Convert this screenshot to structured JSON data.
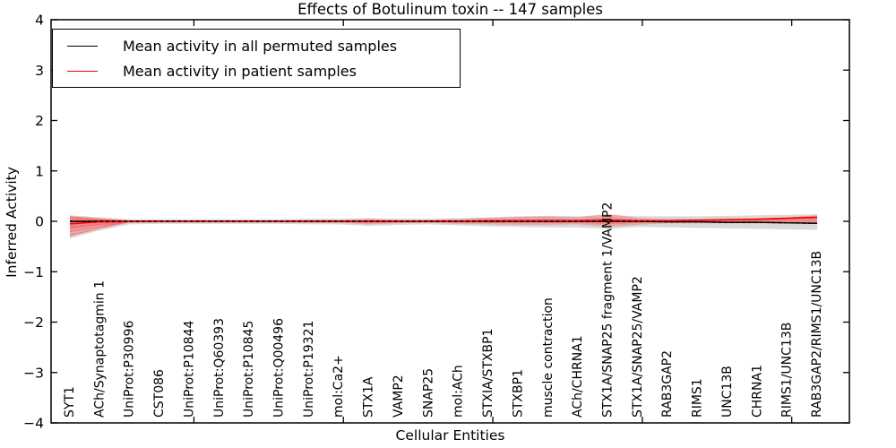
{
  "title": "Effects of Botulinum toxin -- 147 samples",
  "chart_data": {
    "type": "line",
    "title": "Effects of Botulinum toxin -- 147 samples",
    "xlabel": "Cellular Entities",
    "ylabel": "Inferred Activity",
    "ylim": [
      -4,
      4
    ],
    "grid": false,
    "ytick_labels": [
      "4",
      "3",
      "2",
      "1",
      "0",
      "−1",
      "−2",
      "−3",
      "−4"
    ],
    "ytick_values": [
      4,
      3,
      2,
      1,
      0,
      -1,
      -2,
      -3,
      -4
    ],
    "xtick_index_positions": [
      4,
      9,
      14,
      19,
      24
    ],
    "legend": {
      "position": "upper left",
      "entries": [
        {
          "label": "Mean activity in all permuted samples",
          "color": "#000000"
        },
        {
          "label": "Mean activity in patient samples",
          "color": "#ff0000"
        }
      ]
    },
    "categories": [
      "SYT1",
      "ACh/Synaptotagmin 1",
      "UniProt:P30996",
      "CST086",
      "UniProt:P10844",
      "UniProt:Q60393",
      "UniProt:P10845",
      "UniProt:Q00496",
      "UniProt:P19321",
      "mol:Ca2+",
      "STX1A",
      "VAMP2",
      "SNAP25",
      "mol:ACh",
      "STXIA/STXBP1",
      "STXBP1",
      "muscle contraction",
      "ACh/CHRNA1",
      "STX1A/SNAP25 fragment 1/VAMP2",
      "STX1A/SNAP25/VAMP2",
      "RAB3GAP2",
      "RIMS1",
      "UNC13B",
      "CHRNA1",
      "RIMS1/UNC13B",
      "RAB3GAP2/RIMS1/UNC13B"
    ],
    "series": [
      {
        "name": "Mean activity in all permuted samples",
        "color": "#000000",
        "style": "dashed",
        "values": [
          0,
          0,
          0,
          0,
          0,
          0,
          0,
          0,
          0,
          0,
          0,
          0,
          0,
          0,
          0,
          0,
          0,
          0,
          0,
          0,
          -0.01,
          -0.01,
          -0.02,
          -0.02,
          -0.03,
          -0.04
        ]
      },
      {
        "name": "Mean activity in patient samples",
        "color": "#ff0000",
        "style": "solid",
        "values": [
          -0.05,
          -0.01,
          0,
          0,
          0,
          0,
          0,
          0,
          0,
          0,
          0,
          0,
          0,
          0,
          0.01,
          0.01,
          0.01,
          0.01,
          0.02,
          0.01,
          0.01,
          0.02,
          0.03,
          0.04,
          0.06,
          0.08
        ]
      }
    ],
    "bands": [
      {
        "name": "permuted-range",
        "color": "#aaaaaa",
        "opacity": 0.45,
        "low": [
          -0.34,
          -0.18,
          -0.06,
          -0.05,
          -0.05,
          -0.05,
          -0.05,
          -0.05,
          -0.06,
          -0.06,
          -0.09,
          -0.07,
          -0.06,
          -0.08,
          -0.1,
          -0.11,
          -0.12,
          -0.12,
          -0.15,
          -0.11,
          -0.12,
          -0.13,
          -0.14,
          -0.15,
          -0.16,
          -0.17
        ],
        "high": [
          0.12,
          0.08,
          0.04,
          0.04,
          0.04,
          0.04,
          0.04,
          0.04,
          0.05,
          0.05,
          0.06,
          0.05,
          0.05,
          0.06,
          0.08,
          0.1,
          0.11,
          0.1,
          0.13,
          0.1,
          0.1,
          0.1,
          0.11,
          0.12,
          0.13,
          0.14
        ]
      },
      {
        "name": "patient-range",
        "color": "#ff4040",
        "opacity": 0.3,
        "low": [
          -0.3,
          -0.13,
          -0.03,
          -0.02,
          -0.02,
          -0.02,
          -0.02,
          -0.02,
          -0.03,
          -0.03,
          -0.06,
          -0.04,
          -0.03,
          -0.05,
          -0.06,
          -0.07,
          -0.07,
          -0.06,
          -0.11,
          -0.07,
          -0.04,
          -0.04,
          -0.04,
          -0.04,
          -0.04,
          -0.03
        ],
        "high": [
          0.1,
          0.05,
          0.02,
          0.02,
          0.02,
          0.02,
          0.02,
          0.02,
          0.03,
          0.03,
          0.05,
          0.03,
          0.03,
          0.05,
          0.07,
          0.09,
          0.1,
          0.08,
          0.15,
          0.07,
          0.05,
          0.05,
          0.06,
          0.06,
          0.08,
          0.12
        ]
      }
    ],
    "left_fan_offsets": [
      -0.28,
      -0.2,
      -0.12,
      0.06,
      0.09
    ]
  }
}
